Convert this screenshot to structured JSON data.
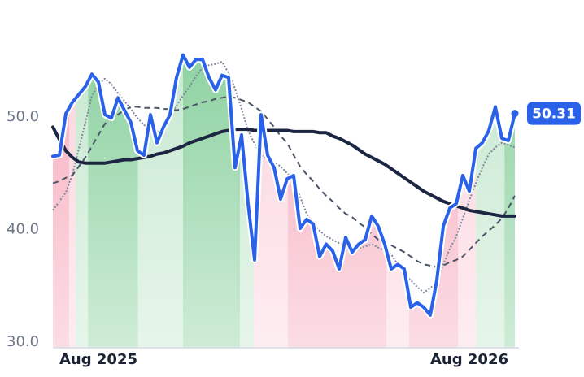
{
  "chart_data": {
    "type": "line",
    "categories": [
      null,
      null,
      null,
      null,
      null,
      null,
      null,
      "Aug 2025",
      null,
      null,
      null,
      null,
      null,
      null,
      null,
      null,
      null,
      null,
      null,
      null,
      null,
      null,
      null,
      null,
      null,
      null,
      null,
      null,
      null,
      null,
      null,
      null,
      null,
      null,
      null,
      null,
      null,
      null,
      null,
      null,
      null,
      null,
      null,
      null,
      null,
      null,
      null,
      null,
      null,
      null,
      null,
      null,
      null,
      null,
      null,
      null,
      null,
      null,
      null,
      null,
      null,
      null,
      null,
      null,
      "Aug 2026",
      null,
      null,
      null,
      null,
      null,
      null,
      null
    ],
    "series": [
      {
        "color": "#2962e8",
        "values": [
          46.5,
          46.6,
          50.3,
          51.3,
          52.0,
          52.7,
          53.8,
          53.1,
          50.2,
          49.9,
          51.7,
          50.6,
          49.5,
          47.0,
          46.6,
          50.2,
          47.7,
          49.1,
          50.2,
          53.5,
          55.5,
          54.4,
          55.1,
          55.1,
          53.5,
          52.4,
          53.7,
          53.5,
          45.5,
          48.4,
          42.3,
          37.3,
          50.2,
          46.6,
          45.5,
          42.7,
          44.5,
          44.8,
          40.1,
          40.9,
          40.5,
          37.6,
          38.7,
          38.1,
          36.5,
          39.3,
          38.0,
          38.7,
          39.1,
          41.2,
          40.3,
          38.7,
          36.5,
          36.9,
          36.5,
          33.1,
          33.5,
          33.1,
          32.4,
          35.5,
          40.3,
          41.9,
          42.3,
          44.8,
          43.4,
          47.2,
          47.7,
          48.8,
          50.9,
          48.1,
          47.9,
          50.31
        ]
      },
      {
        "color": "#1c2541",
        "values": [
          49.1,
          48.0,
          47.0,
          46.4,
          46.0,
          45.9,
          45.9,
          45.9,
          45.9,
          46.0,
          46.1,
          46.2,
          46.2,
          46.3,
          46.4,
          46.5,
          46.7,
          46.8,
          47.0,
          47.2,
          47.4,
          47.7,
          47.9,
          48.1,
          48.3,
          48.5,
          48.7,
          48.8,
          48.9,
          48.9,
          48.9,
          48.8,
          48.8,
          48.8,
          48.8,
          48.8,
          48.8,
          48.7,
          48.7,
          48.7,
          48.7,
          48.6,
          48.6,
          48.3,
          48.1,
          47.8,
          47.5,
          47.1,
          46.7,
          46.4,
          46.1,
          45.8,
          45.4,
          45.0,
          44.6,
          44.2,
          43.8,
          43.4,
          43.1,
          42.8,
          42.5,
          42.3,
          42.1,
          41.9,
          41.7,
          41.6,
          41.5,
          41.4,
          41.3,
          41.2,
          41.2,
          41.2
        ]
      },
      {
        "color": "#4a5568",
        "dash": "7 5",
        "values": [
          44.1,
          44.3,
          44.6,
          44.8,
          45.6,
          46.4,
          47.4,
          48.4,
          49.4,
          49.8,
          50.2,
          50.6,
          50.9,
          50.9,
          50.8,
          50.8,
          50.8,
          50.7,
          50.7,
          50.6,
          50.7,
          50.9,
          51.1,
          51.3,
          51.4,
          51.6,
          51.7,
          51.8,
          51.7,
          51.5,
          51.3,
          50.9,
          50.5,
          49.8,
          49.1,
          48.3,
          47.7,
          46.6,
          45.6,
          44.9,
          44.3,
          43.6,
          43.0,
          42.5,
          41.9,
          41.4,
          41.1,
          40.6,
          40.2,
          39.6,
          39.1,
          38.9,
          38.6,
          38.3,
          38.0,
          37.6,
          37.2,
          36.9,
          36.8,
          36.7,
          36.8,
          37.1,
          37.3,
          37.6,
          38.2,
          38.8,
          39.4,
          39.9,
          40.4,
          41.0,
          41.9,
          43.0
        ]
      },
      {
        "color": "#7d879b",
        "dash": "2 2",
        "values": [
          41.7,
          42.5,
          43.3,
          44.9,
          47.2,
          49.5,
          51.9,
          52.9,
          53.4,
          52.9,
          52.1,
          51.4,
          50.7,
          49.9,
          49.3,
          48.8,
          48.6,
          49.4,
          50.1,
          51.0,
          51.9,
          52.7,
          53.6,
          54.4,
          54.6,
          54.7,
          54.9,
          53.9,
          52.5,
          50.7,
          48.8,
          47.6,
          46.6,
          46.3,
          46.0,
          45.6,
          45.0,
          44.4,
          42.9,
          41.4,
          40.5,
          39.9,
          39.4,
          39.1,
          38.8,
          38.6,
          38.5,
          38.3,
          38.5,
          38.7,
          38.4,
          38.1,
          37.8,
          36.9,
          36.0,
          35.5,
          34.9,
          34.4,
          34.8,
          35.3,
          36.9,
          38.3,
          39.4,
          41.0,
          42.6,
          44.1,
          45.5,
          46.7,
          47.3,
          47.7,
          47.5,
          47.3
        ]
      }
    ],
    "bands": [
      {
        "from": 0,
        "to": 2.5,
        "color": "#f6a9ba"
      },
      {
        "from": 2.5,
        "to": 3.5,
        "color": "#fbd2dc"
      },
      {
        "from": 3.5,
        "to": 5.4,
        "color": "#c3e7cd"
      },
      {
        "from": 5.4,
        "to": 13.1,
        "color": "#86cf9b"
      },
      {
        "from": 13.1,
        "to": 20,
        "color": "#c3e7cd"
      },
      {
        "from": 20,
        "to": 28.75,
        "color": "#86cf9b"
      },
      {
        "from": 28.75,
        "to": 30.9,
        "color": "#c3e7cd"
      },
      {
        "from": 30.9,
        "to": 36.1,
        "color": "#fbd2dc"
      },
      {
        "from": 36.1,
        "to": 51.25,
        "color": "#f6a9ba"
      },
      {
        "from": 51.25,
        "to": 54.75,
        "color": "#fbd2dc"
      },
      {
        "from": 54.75,
        "to": 62.25,
        "color": "#f6a9ba"
      },
      {
        "from": 62.25,
        "to": 65,
        "color": "#fbd2dc"
      },
      {
        "from": 65,
        "to": 69.4,
        "color": "#c3e7cd"
      },
      {
        "from": 69.4,
        "to": 71,
        "color": "#86cf9b"
      }
    ],
    "ylim": [
      29.5,
      58
    ],
    "yticks": [
      {
        "value": 30,
        "label": "30.0"
      },
      {
        "value": 40,
        "label": "40.0"
      },
      {
        "value": 50,
        "label": "50.0"
      }
    ],
    "grid": false
  }
}
